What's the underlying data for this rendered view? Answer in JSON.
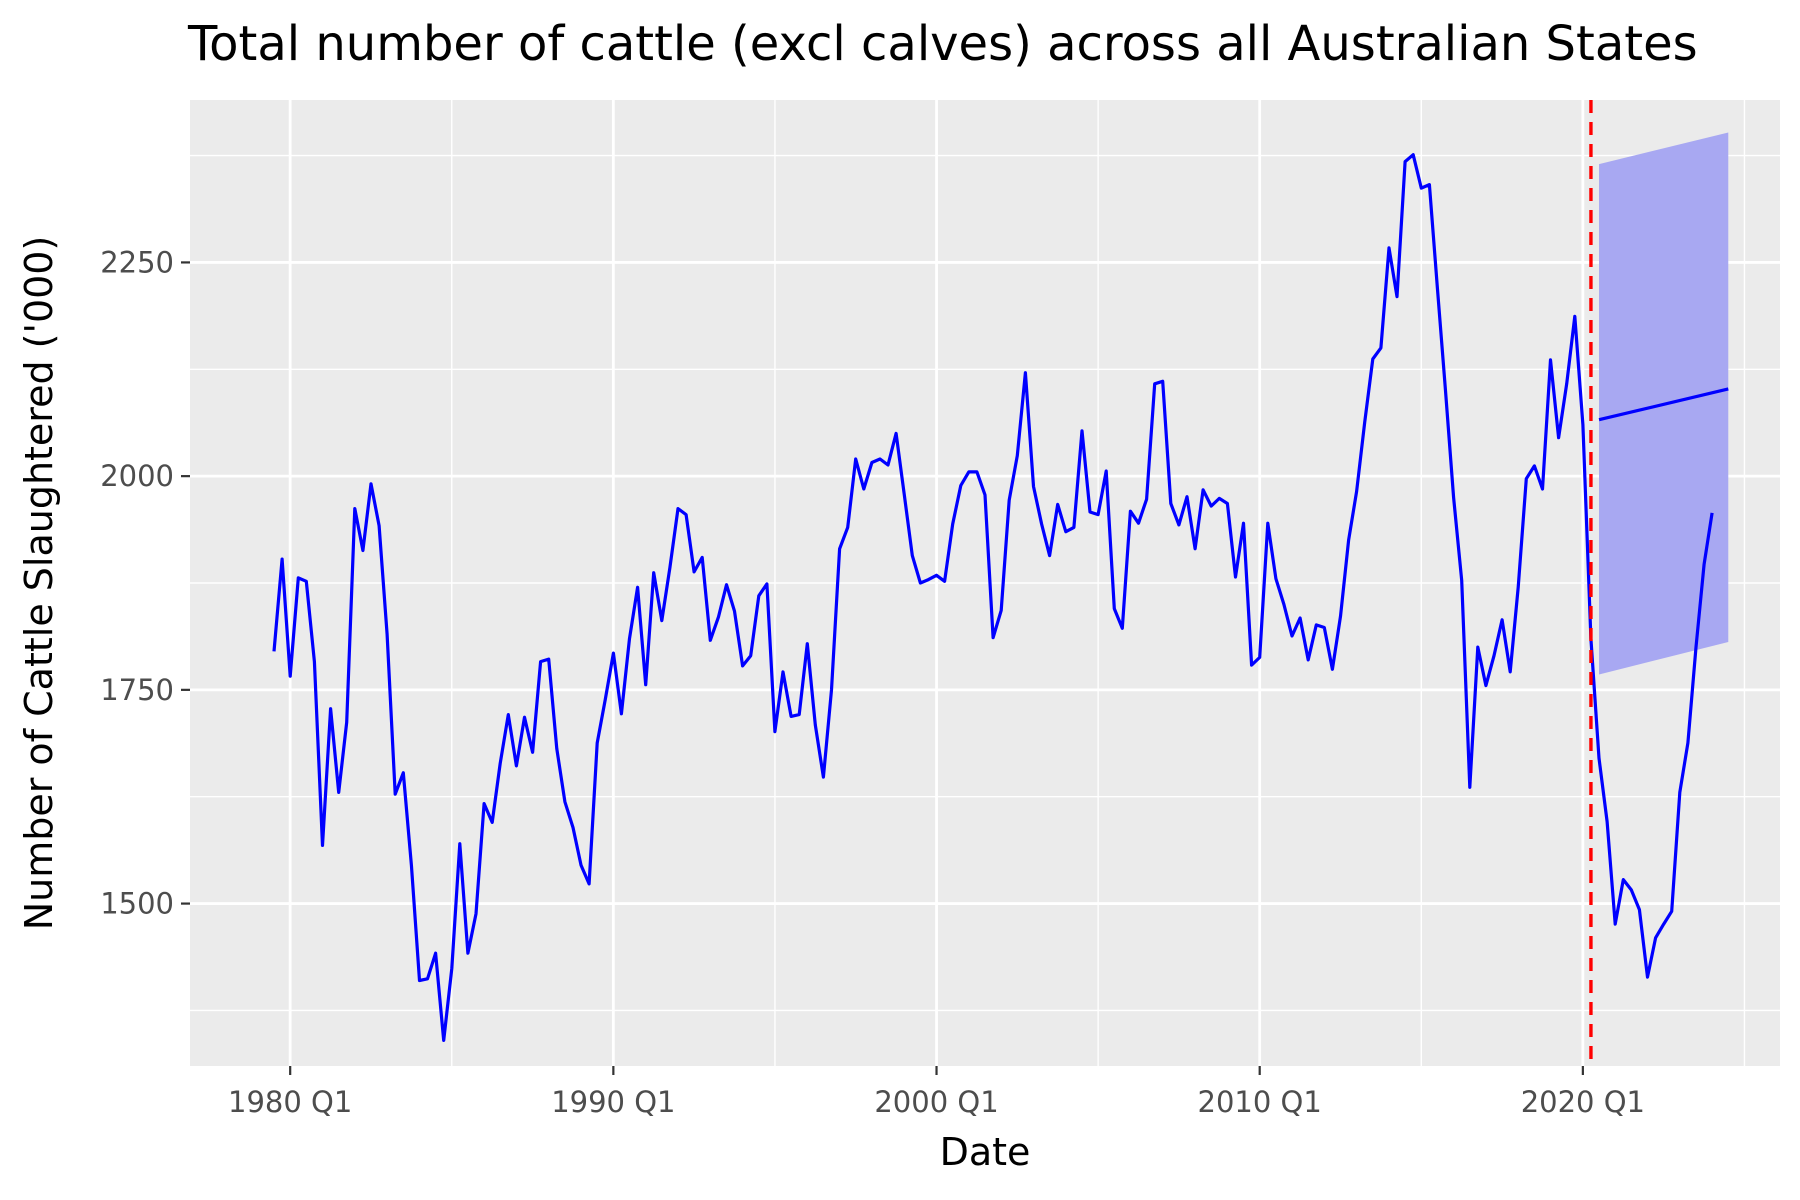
{
  "chart_data": {
    "type": "line",
    "title": "Total number of cattle (excl calves) across all Australian States",
    "xlabel": "Date",
    "ylabel": "Number of Cattle Slaughtered ('000)",
    "x_ticks": [
      {
        "label": "1980 Q1",
        "year": 1980
      },
      {
        "label": "1990 Q1",
        "year": 1990
      },
      {
        "label": "2000 Q1",
        "year": 2000
      },
      {
        "label": "2010 Q1",
        "year": 2010
      },
      {
        "label": "2020 Q1",
        "year": 2020
      }
    ],
    "y_ticks": [
      1500,
      1750,
      2000,
      2250
    ],
    "xlim": [
      1976.9,
      2026.1
    ],
    "ylim": [
      1310,
      2440
    ],
    "grid": true,
    "background": "#ebebeb",
    "grid_color": "#ffffff",
    "line_color": "#0000ff",
    "band_color": "#a8a8f2",
    "vline_color": "#ff0000",
    "series": [
      {
        "x": [
          1979.5,
          1979.75,
          1980.0,
          1980.25,
          1980.5,
          1980.75,
          1981.0,
          1981.25,
          1981.5,
          1981.75,
          1982.0,
          1982.25,
          1982.5,
          1982.75,
          1983.0,
          1983.25,
          1983.5,
          1983.75,
          1984.0,
          1984.25,
          1984.5,
          1984.75,
          1985.0,
          1985.25,
          1985.5,
          1985.75,
          1986.0,
          1986.25,
          1986.5,
          1986.75,
          1987.0,
          1987.25,
          1987.5,
          1987.75,
          1988.0,
          1988.25,
          1988.5,
          1988.75,
          1989.0,
          1989.25,
          1989.5,
          1989.75,
          1990.0,
          1990.25,
          1990.5,
          1990.75,
          1991.0,
          1991.25,
          1991.5,
          1991.75,
          1992.0,
          1992.25,
          1992.5,
          1992.75,
          1993.0,
          1993.25,
          1993.5,
          1993.75,
          1994.0,
          1994.25,
          1994.5,
          1994.75,
          1995.0,
          1995.25,
          1995.5,
          1995.75,
          1996.0,
          1996.25,
          1996.5,
          1996.75,
          1997.0,
          1997.25,
          1997.5,
          1997.75,
          1998.0,
          1998.25,
          1998.5,
          1998.75,
          1999.0,
          1999.25,
          1999.5,
          1999.75,
          2000.0,
          2000.25,
          2000.5,
          2000.75,
          2001.0,
          2001.25,
          2001.5,
          2001.75,
          2002.0,
          2002.25,
          2002.5,
          2002.75,
          2003.0,
          2003.25,
          2003.5,
          2003.75,
          2004.0,
          2004.25,
          2004.5,
          2004.75,
          2005.0,
          2005.25,
          2005.5,
          2005.75,
          2006.0,
          2006.25,
          2006.5,
          2006.75,
          2007.0,
          2007.25,
          2007.5,
          2007.75,
          2008.0,
          2008.25,
          2008.5,
          2008.75,
          2009.0,
          2009.25,
          2009.5,
          2009.75,
          2010.0,
          2010.25,
          2010.5,
          2010.75,
          2011.0,
          2011.25,
          2011.5,
          2011.75,
          2012.0,
          2012.25,
          2012.5,
          2012.75,
          2013.0,
          2013.25,
          2013.5,
          2013.75,
          2014.0,
          2014.25,
          2014.5,
          2014.75,
          2015.0,
          2015.25,
          2015.5,
          2015.75,
          2016.0,
          2016.25,
          2016.5,
          2016.75,
          2017.0,
          2017.25,
          2017.5,
          2017.75,
          2018.0,
          2018.25,
          2018.5,
          2018.75,
          2019.0,
          2019.25,
          2019.5,
          2019.75,
          2020.0,
          2020.25,
          2020.5,
          2020.75,
          2021.0,
          2021.25,
          2021.5,
          2021.75,
          2022.0,
          2022.25,
          2022.5,
          2022.75,
          2023.0,
          2023.25,
          2023.5,
          2023.75,
          2024.0
        ],
        "y": [
          1795,
          1903,
          1766,
          1881,
          1877,
          1783,
          1568,
          1728,
          1630,
          1712,
          1962,
          1913,
          1991,
          1942,
          1815,
          1628,
          1653,
          1545,
          1410,
          1412,
          1442,
          1340,
          1424,
          1570,
          1442,
          1488,
          1617,
          1595,
          1664,
          1721,
          1661,
          1718,
          1677,
          1783,
          1786,
          1681,
          1619,
          1589,
          1545,
          1523,
          1688,
          1739,
          1793,
          1722,
          1810,
          1870,
          1756,
          1887,
          1831,
          1893,
          1962,
          1955,
          1888,
          1905,
          1808,
          1835,
          1873,
          1842,
          1778,
          1790,
          1860,
          1874,
          1701,
          1771,
          1719,
          1721,
          1804,
          1709,
          1648,
          1750,
          1915,
          1940,
          2020,
          1985,
          2016,
          2020,
          2013,
          2050,
          1979,
          1907,
          1875,
          1879,
          1884,
          1877,
          1944,
          1989,
          2005,
          2005,
          1978,
          1811,
          1843,
          1972,
          2024,
          2121,
          1988,
          1944,
          1907,
          1967,
          1935,
          1940,
          2053,
          1958,
          1955,
          2006,
          1845,
          1822,
          1959,
          1945,
          1973,
          2108,
          2111,
          1968,
          1943,
          1976,
          1915,
          1984,
          1965,
          1974,
          1968,
          1882,
          1945,
          1779,
          1788,
          1945,
          1880,
          1850,
          1813,
          1834,
          1785,
          1826,
          1823,
          1774,
          1836,
          1925,
          1982,
          2063,
          2137,
          2150,
          2267,
          2210,
          2368,
          2376,
          2337,
          2341,
          2220,
          2100,
          1975,
          1878,
          1636,
          1800,
          1755,
          1790,
          1832,
          1771,
          1870,
          1997,
          2012,
          1985,
          2136,
          2045,
          2108,
          2187,
          2060,
          1810,
          1670,
          1596,
          1476,
          1528,
          1516,
          1493,
          1414,
          1460,
          1476,
          1491,
          1630,
          1688,
          1800,
          1897,
          1957
        ]
      }
    ],
    "forecast": {
      "x": [
        2020.5,
        2024.5
      ],
      "mean": [
        2066,
        2102
      ],
      "lower": [
        1768,
        1806
      ],
      "upper": [
        2365,
        2402
      ]
    },
    "vline_x": 2020.25
  }
}
